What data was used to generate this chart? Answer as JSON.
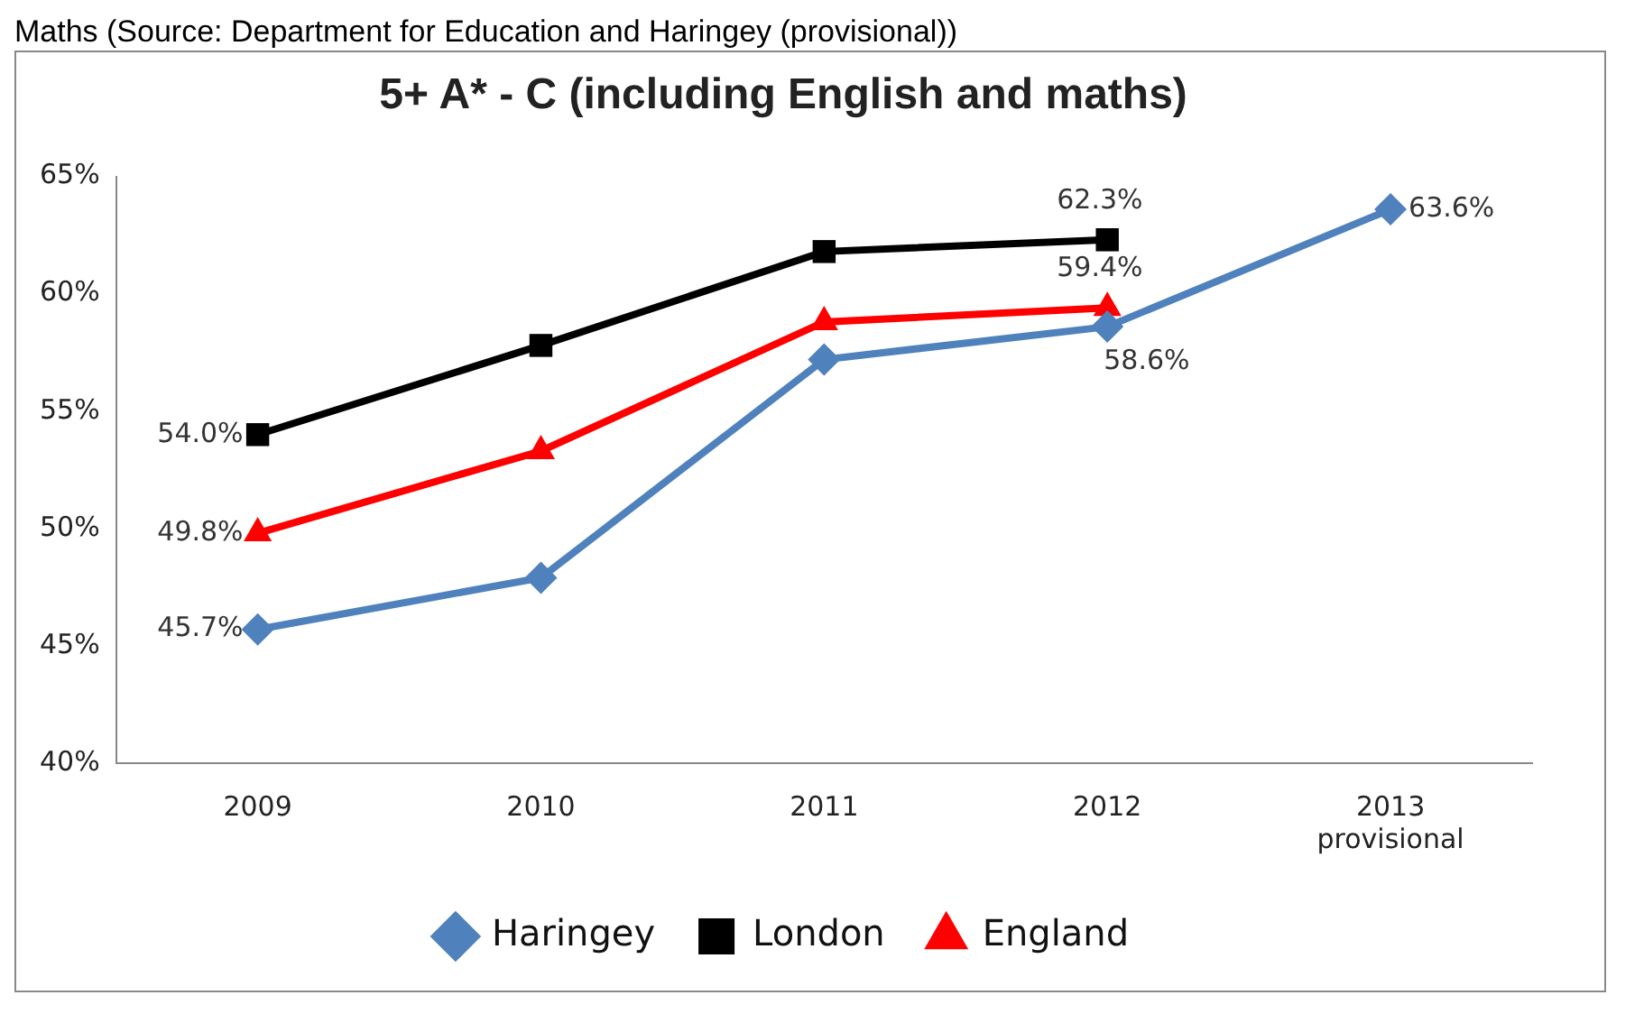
{
  "chart_data": {
    "type": "line",
    "title": "5+ A* - C (including English and maths)",
    "annotations": [
      "Maths (Source: Department for Education and Haringey (provisional))"
    ],
    "categories": [
      "2009",
      "2010",
      "2011",
      "2012",
      "2013\nprovisional"
    ],
    "series": [
      {
        "name": "Haringey",
        "color": "#4f81bd",
        "marker": "diamond",
        "values": [
          45.7,
          47.9,
          57.2,
          58.6,
          63.6
        ],
        "value_labels": [
          "45.7%",
          null,
          null,
          "58.6%",
          "63.6%"
        ]
      },
      {
        "name": "London",
        "color": "#000000",
        "marker": "square",
        "values": [
          54.0,
          57.8,
          61.8,
          62.3,
          null
        ],
        "value_labels": [
          "54.0%",
          null,
          null,
          "62.3%",
          null
        ]
      },
      {
        "name": "England",
        "color": "#ff0000",
        "marker": "triangle",
        "values": [
          49.8,
          53.3,
          58.8,
          59.4,
          null
        ],
        "value_labels": [
          "49.8%",
          null,
          null,
          "59.4%",
          null
        ]
      }
    ],
    "ylim": [
      40,
      65
    ],
    "yticks": [
      {
        "value": 40,
        "label": "40%"
      },
      {
        "value": 45,
        "label": "45%"
      },
      {
        "value": 50,
        "label": "50%"
      },
      {
        "value": 55,
        "label": "55%"
      },
      {
        "value": 60,
        "label": "60%"
      },
      {
        "value": 65,
        "label": "65%"
      }
    ],
    "grid": false,
    "legend": "bottom"
  }
}
